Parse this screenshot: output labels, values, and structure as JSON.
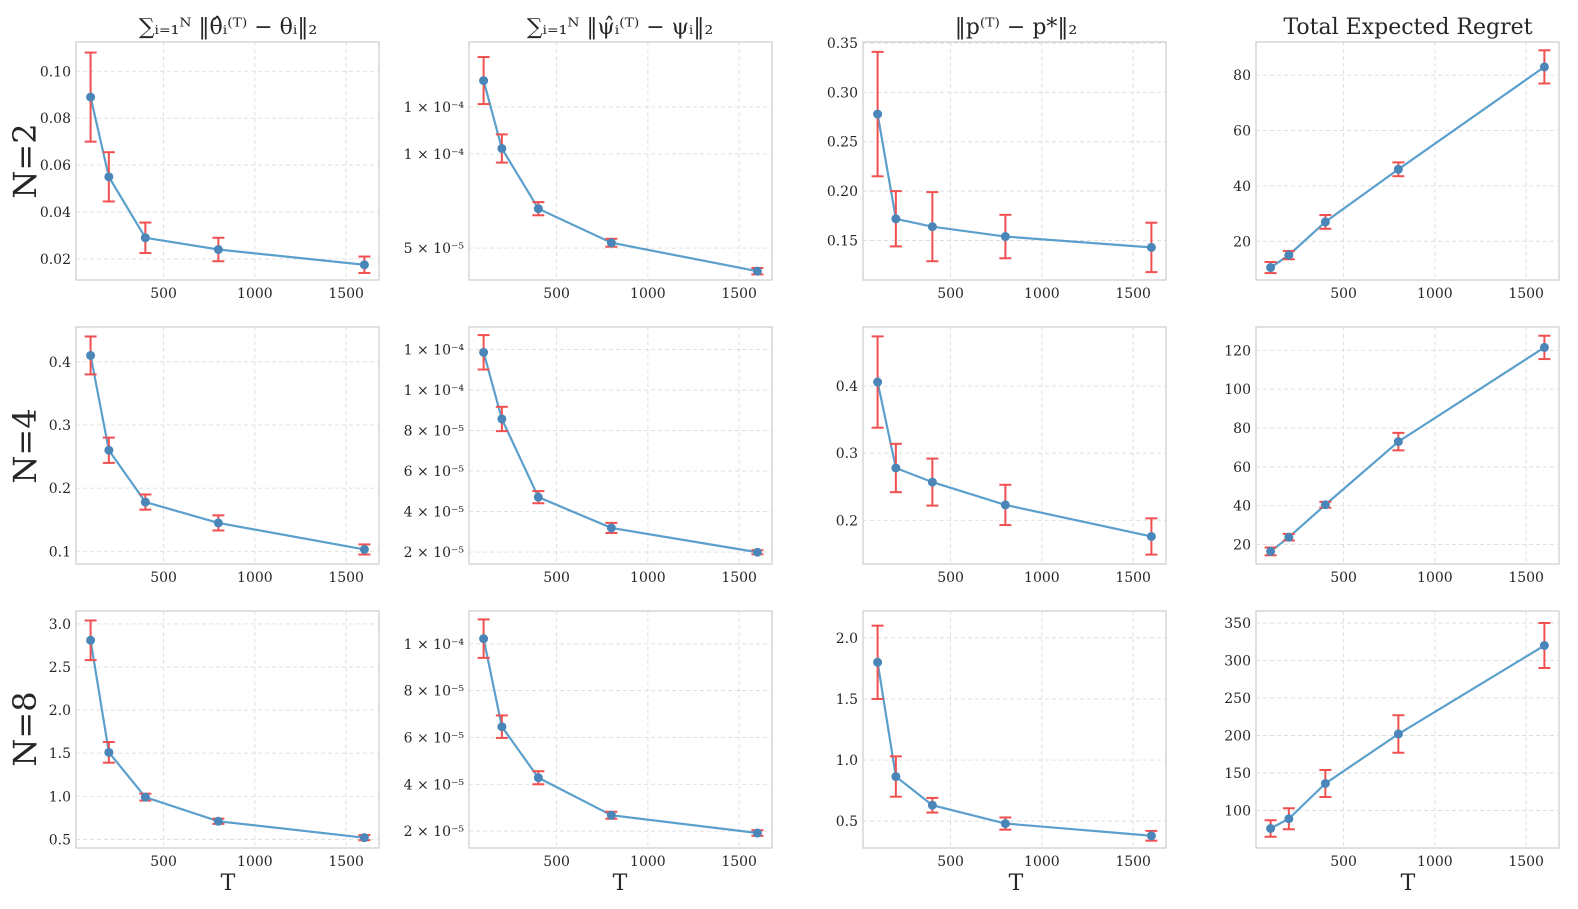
{
  "figure": {
    "column_titles": [
      "∑ᵢ₌₁ᴺ ‖θ̂ᵢ⁽ᵀ⁾ − θᵢ‖₂",
      "∑ᵢ₌₁ᴺ ‖ψ̂ᵢ⁽ᵀ⁾ − ψᵢ‖₂",
      "‖p⁽ᵀ⁾ − p*‖₂",
      "Total Expected Regret"
    ],
    "row_labels": [
      "N=2",
      "N=4",
      "N=8"
    ],
    "xlabel": "T"
  },
  "colors": {
    "line": "#5b9fcc",
    "marker": "#4a86b8",
    "errorbar": "#f0504f",
    "grid": "#dddddd"
  },
  "chart_data": [
    {
      "type": "line",
      "row_label": "N=2",
      "title": "∑ᵢ₌₁ᴺ ‖θ̂ᵢ⁽ᵀ⁾ − θᵢ‖₂",
      "xlabel": "",
      "ylabel": "",
      "x": [
        100,
        200,
        400,
        800,
        1600
      ],
      "y": [
        0.089,
        0.055,
        0.029,
        0.024,
        0.0175
      ],
      "yerr": [
        0.019,
        0.0105,
        0.0065,
        0.005,
        0.0035
      ],
      "xlim": [
        20,
        1680
      ],
      "ylim": [
        0.011,
        0.1125
      ],
      "xticks": [
        500,
        1000,
        1500
      ],
      "xticklabels": [
        "500",
        "1000",
        "1500"
      ],
      "yticks": [
        0.02,
        0.04,
        0.06,
        0.08,
        0.1
      ],
      "yticklabels": [
        "0.02",
        "0.04",
        "0.06",
        "0.08",
        "0.10"
      ],
      "grid": true
    },
    {
      "type": "line",
      "row_label": "N=2",
      "title": "∑ᵢ₌₁ᴺ ‖ψ̂ᵢ⁽ᵀ⁾ − ψᵢ‖₂",
      "xlabel": "",
      "ylabel": "",
      "x": [
        100,
        200,
        400,
        800,
        1600
      ],
      "y": [
        0.000139,
        0.0001029,
        7.09e-05,
        5.28e-05,
        3.77e-05
      ],
      "yerr": [
        1.25e-05,
        7.5e-06,
        3.5e-06,
        2.1e-06,
        1.7e-06
      ],
      "xlim": [
        20,
        1680
      ],
      "ylim": [
        3.3e-05,
        0.0001595
      ],
      "xticks": [
        500,
        1000,
        1500
      ],
      "xticklabels": [
        "500",
        "1000",
        "1500"
      ],
      "yticks": [
        5e-05,
        0.0001,
        0.000125
      ],
      "yticklabels": [
        "5 × 10⁻⁵",
        "1 × 10⁻⁴",
        "1 × 10⁻⁴"
      ],
      "grid": true
    },
    {
      "type": "line",
      "row_label": "N=2",
      "title": "‖p⁽ᵀ⁾ − p*‖₂",
      "xlabel": "",
      "ylabel": "",
      "x": [
        100,
        200,
        400,
        800,
        1600
      ],
      "y": [
        0.278,
        0.172,
        0.164,
        0.154,
        0.143
      ],
      "yerr": [
        0.063,
        0.028,
        0.035,
        0.022,
        0.025
      ],
      "xlim": [
        20,
        1680
      ],
      "ylim": [
        0.11,
        0.351
      ],
      "xticks": [
        500,
        1000,
        1500
      ],
      "xticklabels": [
        "500",
        "1000",
        "1500"
      ],
      "yticks": [
        0.15,
        0.2,
        0.25,
        0.3,
        0.35
      ],
      "yticklabels": [
        "0.15",
        "0.20",
        "0.25",
        "0.30",
        "0.35"
      ],
      "grid": true
    },
    {
      "type": "line",
      "row_label": "N=2",
      "title": "Total Expected Regret",
      "xlabel": "",
      "ylabel": "",
      "x": [
        100,
        200,
        400,
        800,
        1600
      ],
      "y": [
        10.5,
        15,
        27,
        46,
        83
      ],
      "yerr": [
        2,
        1.5,
        2.5,
        2.5,
        6
      ],
      "xlim": [
        20,
        1680
      ],
      "ylim": [
        6,
        92
      ],
      "xticks": [
        500,
        1000,
        1500
      ],
      "xticklabels": [
        "500",
        "1000",
        "1500"
      ],
      "yticks": [
        20,
        40,
        60,
        80
      ],
      "yticklabels": [
        "20",
        "40",
        "60",
        "80"
      ],
      "grid": true
    },
    {
      "type": "line",
      "row_label": "N=4",
      "title": "",
      "xlabel": "",
      "ylabel": "",
      "x": [
        100,
        200,
        400,
        800,
        1600
      ],
      "y": [
        0.41,
        0.26,
        0.178,
        0.145,
        0.103
      ],
      "yerr": [
        0.03,
        0.02,
        0.012,
        0.012,
        0.008
      ],
      "xlim": [
        20,
        1680
      ],
      "ylim": [
        0.08,
        0.455
      ],
      "xticks": [
        500,
        1000,
        1500
      ],
      "xticklabels": [
        "500",
        "1000",
        "1500"
      ],
      "yticks": [
        0.1,
        0.2,
        0.3,
        0.4
      ],
      "yticklabels": [
        "0.1",
        "0.2",
        "0.3",
        "0.4"
      ],
      "grid": true
    },
    {
      "type": "line",
      "row_label": "N=4",
      "title": "",
      "xlabel": "",
      "ylabel": "",
      "x": [
        100,
        200,
        400,
        800,
        1600
      ],
      "y": [
        0.0001186,
        8.57e-05,
        4.71e-05,
        3.19e-05,
        1.99e-05
      ],
      "yerr": [
        8.5e-06,
        6e-06,
        3e-06,
        2.5e-06,
        1e-06
      ],
      "xlim": [
        20,
        1680
      ],
      "ylim": [
        1.41e-05,
        0.0001311
      ],
      "xticks": [
        500,
        1000,
        1500
      ],
      "xticklabels": [
        "500",
        "1000",
        "1500"
      ],
      "yticks": [
        2e-05,
        4e-05,
        6e-05,
        8e-05,
        0.0001,
        0.00012
      ],
      "yticklabels": [
        "2 × 10⁻⁵",
        "4 × 10⁻⁵",
        "6 × 10⁻⁵",
        "8 × 10⁻⁵",
        "1 × 10⁻⁴",
        "1 × 10⁻⁴"
      ],
      "grid": true
    },
    {
      "type": "line",
      "row_label": "N=4",
      "title": "",
      "xlabel": "",
      "ylabel": "",
      "x": [
        100,
        200,
        400,
        800,
        1600
      ],
      "y": [
        0.406,
        0.278,
        0.257,
        0.223,
        0.176
      ],
      "yerr": [
        0.068,
        0.036,
        0.035,
        0.03,
        0.027
      ],
      "xlim": [
        20,
        1680
      ],
      "ylim": [
        0.135,
        0.488
      ],
      "xticks": [
        500,
        1000,
        1500
      ],
      "xticklabels": [
        "500",
        "1000",
        "1500"
      ],
      "yticks": [
        0.2,
        0.3,
        0.4
      ],
      "yticklabels": [
        "0.2",
        "0.3",
        "0.4"
      ],
      "grid": true
    },
    {
      "type": "line",
      "row_label": "N=4",
      "title": "",
      "xlabel": "",
      "ylabel": "",
      "x": [
        100,
        200,
        400,
        800,
        1600
      ],
      "y": [
        16.5,
        23.8,
        40.5,
        73,
        121.5
      ],
      "yerr": [
        2,
        1.7,
        1.5,
        4.5,
        6
      ],
      "xlim": [
        20,
        1680
      ],
      "ylim": [
        10,
        132
      ],
      "xticks": [
        500,
        1000,
        1500
      ],
      "xticklabels": [
        "500",
        "1000",
        "1500"
      ],
      "yticks": [
        20,
        40,
        60,
        80,
        100,
        120
      ],
      "yticklabels": [
        "20",
        "40",
        "60",
        "80",
        "100",
        "120"
      ],
      "grid": true
    },
    {
      "type": "line",
      "row_label": "N=8",
      "title": "",
      "xlabel": "T",
      "ylabel": "",
      "x": [
        100,
        200,
        400,
        800,
        1600
      ],
      "y": [
        2.81,
        1.51,
        0.99,
        0.71,
        0.52
      ],
      "yerr": [
        0.23,
        0.12,
        0.04,
        0.03,
        0.03
      ],
      "xlim": [
        20,
        1680
      ],
      "ylim": [
        0.4,
        3.15
      ],
      "xticks": [
        500,
        1000,
        1500
      ],
      "xticklabels": [
        "500",
        "1000",
        "1500"
      ],
      "yticks": [
        0.5,
        1.0,
        1.5,
        2.0,
        2.5,
        3.0
      ],
      "yticklabels": [
        "0.5",
        "1.0",
        "1.5",
        "2.0",
        "2.5",
        "3.0"
      ],
      "grid": true
    },
    {
      "type": "line",
      "row_label": "N=8",
      "title": "",
      "xlabel": "T",
      "ylabel": "",
      "x": [
        100,
        200,
        400,
        800,
        1600
      ],
      "y": [
        0.0001022,
        6.46e-05,
        4.28e-05,
        2.68e-05,
        1.92e-05
      ],
      "yerr": [
        8.2e-06,
        4.8e-06,
        2.8e-06,
        1.5e-06,
        1.2e-06
      ],
      "xlim": [
        20,
        1680
      ],
      "ylim": [
        1.28e-05,
        0.000114
      ],
      "xticks": [
        500,
        1000,
        1500
      ],
      "xticklabels": [
        "500",
        "1000",
        "1500"
      ],
      "yticks": [
        2e-05,
        4e-05,
        6e-05,
        8e-05,
        0.0001
      ],
      "yticklabels": [
        "2 × 10⁻⁵",
        "4 × 10⁻⁵",
        "6 × 10⁻⁵",
        "8 × 10⁻⁵",
        "1 × 10⁻⁴"
      ],
      "grid": true
    },
    {
      "type": "line",
      "row_label": "N=8",
      "title": "",
      "xlabel": "T",
      "ylabel": "",
      "x": [
        100,
        200,
        400,
        800,
        1600
      ],
      "y": [
        1.8,
        0.865,
        0.63,
        0.48,
        0.38
      ],
      "yerr": [
        0.3,
        0.165,
        0.06,
        0.05,
        0.04
      ],
      "xlim": [
        20,
        1680
      ],
      "ylim": [
        0.28,
        2.22
      ],
      "xticks": [
        500,
        1000,
        1500
      ],
      "xticklabels": [
        "500",
        "1000",
        "1500"
      ],
      "yticks": [
        0.5,
        1.0,
        1.5,
        2.0
      ],
      "yticklabels": [
        "0.5",
        "1.0",
        "1.5",
        "2.0"
      ],
      "grid": true
    },
    {
      "type": "line",
      "row_label": "N=8",
      "title": "",
      "xlabel": "T",
      "ylabel": "",
      "x": [
        100,
        200,
        400,
        800,
        1600
      ],
      "y": [
        76,
        89,
        136,
        202,
        320
      ],
      "yerr": [
        11,
        14,
        18,
        25,
        30
      ],
      "xlim": [
        20,
        1680
      ],
      "ylim": [
        50,
        366
      ],
      "xticks": [
        500,
        1000,
        1500
      ],
      "xticklabels": [
        "500",
        "1000",
        "1500"
      ],
      "yticks": [
        100,
        150,
        200,
        250,
        300,
        350
      ],
      "yticklabels": [
        "100",
        "150",
        "200",
        "250",
        "300",
        "350"
      ],
      "grid": true
    }
  ]
}
